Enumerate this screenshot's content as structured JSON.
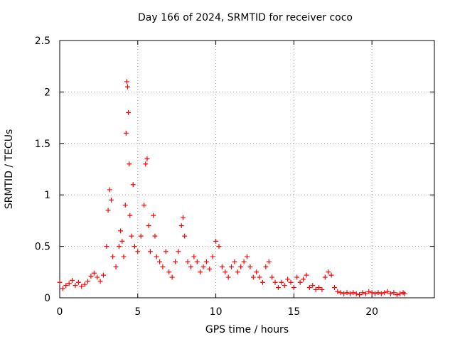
{
  "chart_data": {
    "type": "scatter",
    "title": "Day 166 of 2024, SRMTID for receiver coco",
    "xlabel": "GPS time / hours",
    "ylabel": "SRMTID / TECUs",
    "xlim": [
      0,
      24
    ],
    "ylim": [
      0,
      2.5
    ],
    "xticks": [
      0,
      5,
      10,
      15,
      20
    ],
    "yticks": [
      0,
      0.5,
      1,
      1.5,
      2,
      2.5
    ],
    "xtick_labels": [
      "0",
      "5",
      "10",
      "15",
      "20"
    ],
    "ytick_labels": [
      "0",
      "0.5",
      "1",
      "1.5",
      "2",
      "2.5"
    ],
    "grid": true,
    "marker": "plus",
    "color": "#ff0000",
    "series": [
      {
        "name": "SRMTID",
        "x": [
          0.0,
          0.2,
          0.4,
          0.6,
          0.8,
          1.0,
          1.2,
          1.4,
          1.6,
          1.8,
          2.0,
          2.2,
          2.4,
          2.6,
          2.8,
          3.0,
          3.1,
          3.2,
          3.3,
          3.4,
          3.6,
          3.8,
          3.9,
          4.0,
          4.1,
          4.2,
          4.25,
          4.3,
          4.35,
          4.4,
          4.45,
          4.5,
          4.6,
          4.7,
          4.8,
          5.0,
          5.2,
          5.4,
          5.5,
          5.6,
          5.7,
          5.8,
          6.0,
          6.1,
          6.2,
          6.4,
          6.6,
          6.8,
          7.0,
          7.2,
          7.4,
          7.6,
          7.8,
          7.9,
          8.0,
          8.2,
          8.4,
          8.6,
          8.8,
          9.0,
          9.2,
          9.4,
          9.6,
          9.8,
          10.0,
          10.2,
          10.4,
          10.6,
          10.8,
          11.0,
          11.2,
          11.4,
          11.6,
          11.8,
          12.0,
          12.2,
          12.4,
          12.6,
          12.8,
          13.0,
          13.2,
          13.4,
          13.6,
          13.8,
          14.0,
          14.2,
          14.4,
          14.6,
          14.8,
          15.0,
          15.2,
          15.4,
          15.6,
          15.8,
          16.0,
          16.2,
          16.4,
          16.6,
          16.8,
          17.0,
          17.2,
          17.4,
          17.6,
          17.8,
          18.0,
          18.2,
          18.4,
          18.6,
          18.8,
          19.0,
          19.2,
          19.4,
          19.6,
          19.8,
          20.0,
          20.2,
          20.4,
          20.6,
          20.8,
          21.0,
          21.2,
          21.4,
          21.6,
          21.8,
          22.0,
          22.1
        ],
        "values": [
          0.15,
          0.09,
          0.12,
          0.14,
          0.17,
          0.12,
          0.15,
          0.11,
          0.13,
          0.16,
          0.21,
          0.24,
          0.2,
          0.16,
          0.22,
          0.5,
          0.85,
          1.05,
          0.95,
          0.4,
          0.3,
          0.5,
          0.65,
          0.55,
          0.4,
          0.9,
          1.6,
          2.1,
          2.05,
          1.8,
          1.3,
          0.8,
          0.6,
          1.1,
          0.5,
          0.45,
          0.6,
          0.9,
          1.3,
          1.35,
          0.7,
          0.45,
          0.8,
          0.6,
          0.4,
          0.35,
          0.3,
          0.45,
          0.25,
          0.2,
          0.35,
          0.45,
          0.7,
          0.78,
          0.6,
          0.35,
          0.3,
          0.4,
          0.35,
          0.25,
          0.3,
          0.35,
          0.28,
          0.4,
          0.55,
          0.5,
          0.3,
          0.25,
          0.2,
          0.3,
          0.35,
          0.25,
          0.3,
          0.35,
          0.4,
          0.3,
          0.2,
          0.25,
          0.2,
          0.15,
          0.3,
          0.35,
          0.2,
          0.15,
          0.1,
          0.15,
          0.12,
          0.18,
          0.15,
          0.1,
          0.2,
          0.15,
          0.18,
          0.22,
          0.1,
          0.12,
          0.08,
          0.1,
          0.08,
          0.2,
          0.25,
          0.22,
          0.1,
          0.06,
          0.05,
          0.04,
          0.05,
          0.04,
          0.05,
          0.04,
          0.03,
          0.05,
          0.04,
          0.06,
          0.05,
          0.04,
          0.05,
          0.04,
          0.05,
          0.06,
          0.04,
          0.05,
          0.03,
          0.04,
          0.05,
          0.04
        ]
      }
    ]
  }
}
